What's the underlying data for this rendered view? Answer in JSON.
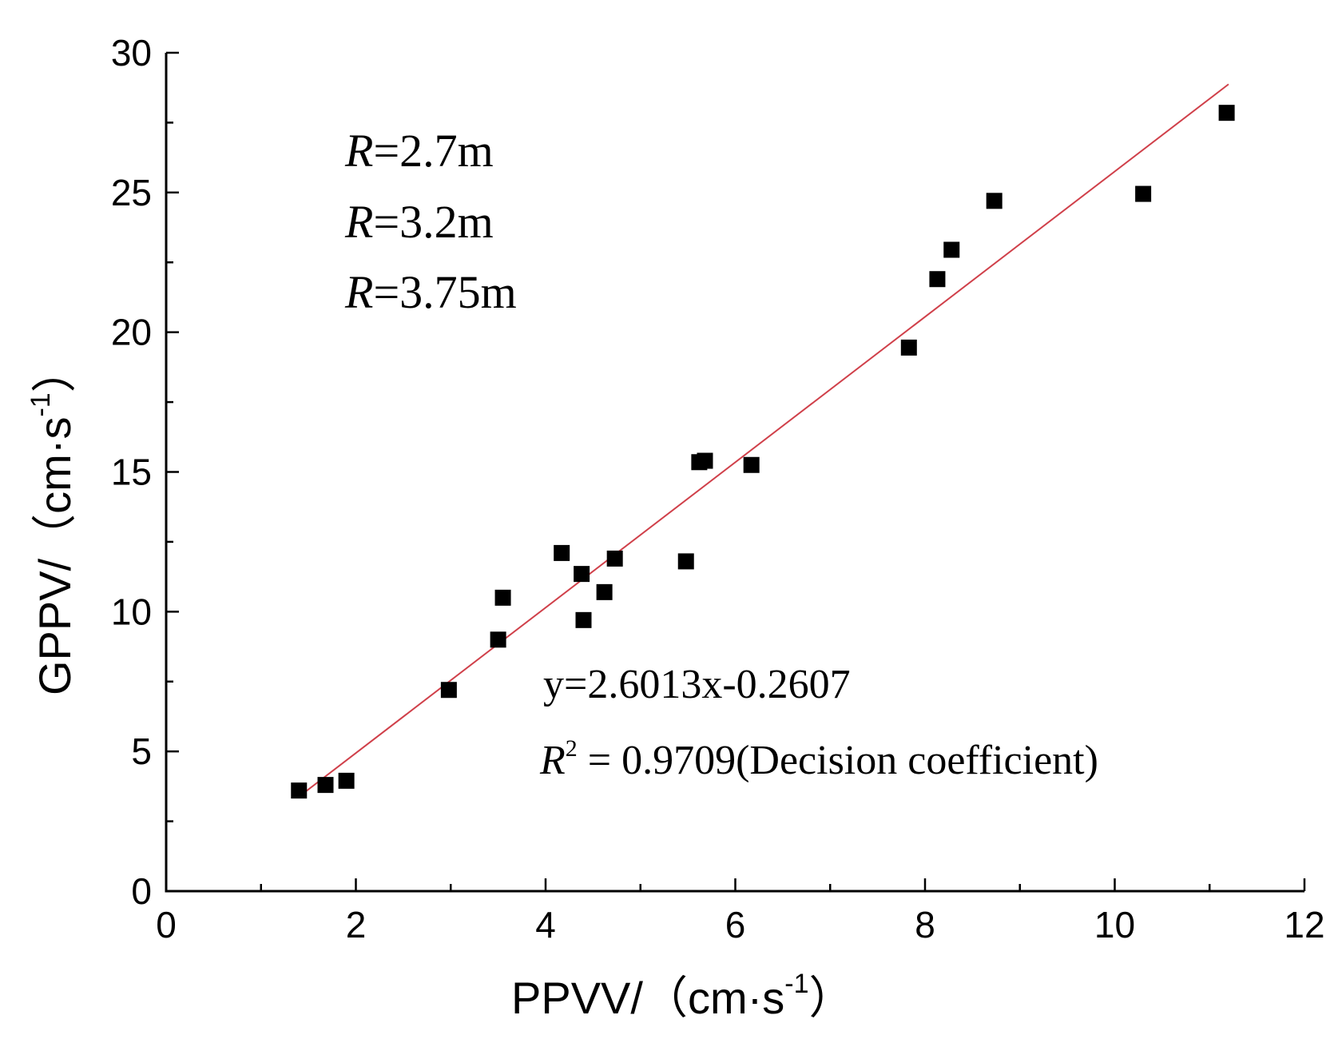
{
  "chart_data": {
    "type": "scatter",
    "title": "",
    "xlabel": "PPVV/（cm·s",
    "xlabel_sup": "-1",
    "xlabel_close": "）",
    "ylabel": "GPPV/（cm·s",
    "ylabel_sup": "-1",
    "ylabel_close": "）",
    "xlim": [
      0,
      12
    ],
    "ylim": [
      0,
      30
    ],
    "x_ticks": [
      0,
      2,
      4,
      6,
      8,
      10,
      12
    ],
    "y_ticks": [
      0,
      5,
      10,
      15,
      20,
      25,
      30
    ],
    "grid": false,
    "legend_entries": [
      {
        "var": "R",
        "text": "=2.7m"
      },
      {
        "var": "R",
        "text": "=3.2m"
      },
      {
        "var": "R",
        "text": "=3.75m"
      }
    ],
    "fit": {
      "slope": 2.6013,
      "intercept": -0.2607,
      "x_range": [
        1.45,
        11.2
      ],
      "equation": "y=2.6013x-0.2607",
      "r2_var": "R",
      "r2_sup": "2",
      "r2_text": " = 0.9709(Decision coefficient)",
      "color": "#d0404a"
    },
    "series": [
      {
        "name": "points",
        "color": "#000000",
        "x": [
          1.4,
          1.68,
          1.9,
          2.98,
          3.5,
          3.55,
          4.17,
          4.38,
          4.4,
          4.62,
          4.73,
          5.48,
          5.62,
          5.68,
          6.17,
          7.83,
          8.13,
          8.28,
          8.73,
          10.3,
          11.18
        ],
        "y": [
          3.6,
          3.8,
          3.95,
          7.2,
          9.0,
          10.5,
          12.1,
          11.35,
          9.7,
          10.7,
          11.9,
          11.8,
          15.35,
          15.4,
          15.25,
          19.45,
          21.9,
          22.95,
          24.7,
          24.95,
          27.85
        ]
      }
    ]
  }
}
